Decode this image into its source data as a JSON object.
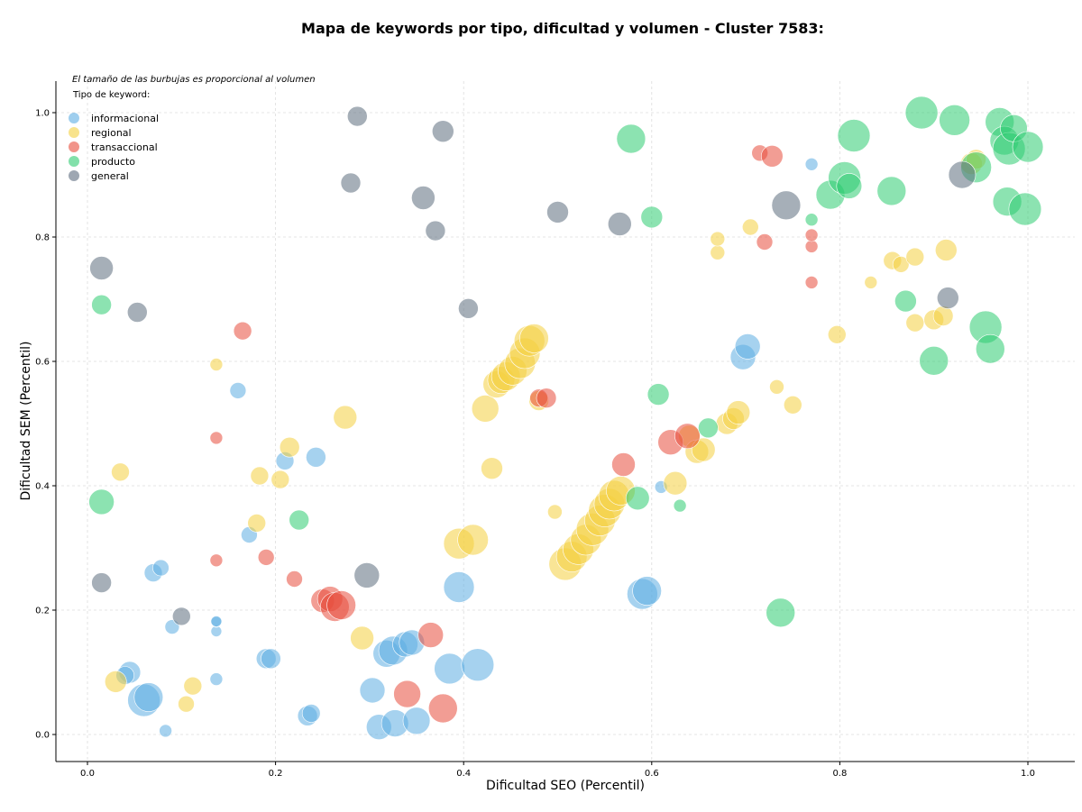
{
  "chart_data": {
    "type": "scatter",
    "title": "Mapa de keywords por tipo, dificultad y volumen - Cluster 7583:",
    "xlabel": "Dificultad SEO (Percentil)",
    "ylabel": "Dificultad SEM (Percentil)",
    "xlim": [
      -0.035,
      1.035
    ],
    "ylim": [
      -0.045,
      1.045
    ],
    "xticks": [
      "0.0",
      "0.2",
      "0.4",
      "0.6",
      "0.8",
      "1.0"
    ],
    "yticks": [
      "0.0",
      "0.2",
      "0.4",
      "0.6",
      "0.8",
      "1.0"
    ],
    "grid": true,
    "size_note": "El tamaño de las burbujas es proporcional al volumen",
    "legend_title": "Tipo de keyword:",
    "legend_position": "top-left",
    "series": [
      {
        "name": "informacional",
        "color": "#5DADE2",
        "points": [
          [
            0.045,
            0.1,
            12
          ],
          [
            0.04,
            0.095,
            10
          ],
          [
            0.06,
            0.055,
            18
          ],
          [
            0.065,
            0.06,
            16
          ],
          [
            0.07,
            0.26,
            10
          ],
          [
            0.078,
            0.268,
            9
          ],
          [
            0.083,
            0.006,
            7
          ],
          [
            0.09,
            0.173,
            8
          ],
          [
            0.137,
            0.089,
            7
          ],
          [
            0.137,
            0.166,
            6
          ],
          [
            0.137,
            0.181,
            6
          ],
          [
            0.137,
            0.182,
            6
          ],
          [
            0.16,
            0.553,
            9
          ],
          [
            0.172,
            0.321,
            9
          ],
          [
            0.19,
            0.122,
            11
          ],
          [
            0.195,
            0.122,
            11
          ],
          [
            0.21,
            0.44,
            10
          ],
          [
            0.234,
            0.03,
            11
          ],
          [
            0.238,
            0.034,
            10
          ],
          [
            0.243,
            0.446,
            11
          ],
          [
            0.303,
            0.071,
            14
          ],
          [
            0.31,
            0.012,
            14
          ],
          [
            0.318,
            0.13,
            15
          ],
          [
            0.325,
            0.135,
            16
          ],
          [
            0.327,
            0.018,
            15
          ],
          [
            0.338,
            0.145,
            14
          ],
          [
            0.345,
            0.148,
            14
          ],
          [
            0.35,
            0.022,
            15
          ],
          [
            0.385,
            0.106,
            17
          ],
          [
            0.395,
            0.237,
            17
          ],
          [
            0.415,
            0.112,
            18
          ],
          [
            0.59,
            0.226,
            17
          ],
          [
            0.595,
            0.231,
            16
          ],
          [
            0.61,
            0.398,
            7
          ],
          [
            0.697,
            0.607,
            14
          ],
          [
            0.702,
            0.624,
            14
          ],
          [
            0.77,
            0.917,
            7
          ]
        ]
      },
      {
        "name": "regional",
        "color": "#F4D03F",
        "points": [
          [
            0.03,
            0.085,
            12
          ],
          [
            0.035,
            0.422,
            10
          ],
          [
            0.105,
            0.049,
            9
          ],
          [
            0.112,
            0.078,
            10
          ],
          [
            0.137,
            0.595,
            7
          ],
          [
            0.18,
            0.34,
            10
          ],
          [
            0.183,
            0.416,
            10
          ],
          [
            0.205,
            0.41,
            10
          ],
          [
            0.215,
            0.462,
            11
          ],
          [
            0.274,
            0.51,
            13
          ],
          [
            0.292,
            0.155,
            13
          ],
          [
            0.395,
            0.307,
            17
          ],
          [
            0.41,
            0.313,
            17
          ],
          [
            0.423,
            0.524,
            15
          ],
          [
            0.43,
            0.428,
            12
          ],
          [
            0.435,
            0.563,
            15
          ],
          [
            0.44,
            0.57,
            15
          ],
          [
            0.445,
            0.576,
            16
          ],
          [
            0.452,
            0.585,
            16
          ],
          [
            0.46,
            0.597,
            17
          ],
          [
            0.465,
            0.613,
            17
          ],
          [
            0.47,
            0.633,
            17
          ],
          [
            0.475,
            0.637,
            16
          ],
          [
            0.48,
            0.537,
            11
          ],
          [
            0.497,
            0.358,
            8
          ],
          [
            0.508,
            0.274,
            18
          ],
          [
            0.515,
            0.286,
            17
          ],
          [
            0.522,
            0.298,
            17
          ],
          [
            0.53,
            0.313,
            17
          ],
          [
            0.537,
            0.33,
            18
          ],
          [
            0.545,
            0.344,
            17
          ],
          [
            0.55,
            0.36,
            18
          ],
          [
            0.555,
            0.371,
            17
          ],
          [
            0.56,
            0.384,
            17
          ],
          [
            0.567,
            0.392,
            16
          ],
          [
            0.625,
            0.404,
            13
          ],
          [
            0.64,
            0.48,
            12
          ],
          [
            0.648,
            0.455,
            13
          ],
          [
            0.655,
            0.458,
            13
          ],
          [
            0.68,
            0.5,
            12
          ],
          [
            0.687,
            0.508,
            12
          ],
          [
            0.692,
            0.518,
            13
          ],
          [
            0.67,
            0.775,
            8
          ],
          [
            0.67,
            0.797,
            8
          ],
          [
            0.705,
            0.816,
            9
          ],
          [
            0.733,
            0.559,
            8
          ],
          [
            0.75,
            0.53,
            10
          ],
          [
            0.797,
            0.643,
            10
          ],
          [
            0.833,
            0.727,
            7
          ],
          [
            0.856,
            0.762,
            10
          ],
          [
            0.865,
            0.756,
            9
          ],
          [
            0.88,
            0.768,
            10
          ],
          [
            0.88,
            0.662,
            10
          ],
          [
            0.9,
            0.667,
            11
          ],
          [
            0.91,
            0.673,
            11
          ],
          [
            0.913,
            0.779,
            12
          ],
          [
            0.94,
            0.918,
            12
          ],
          [
            0.945,
            0.925,
            11
          ]
        ]
      },
      {
        "name": "transaccional",
        "color": "#E74C3C",
        "points": [
          [
            0.137,
            0.477,
            7
          ],
          [
            0.137,
            0.28,
            7
          ],
          [
            0.165,
            0.649,
            10
          ],
          [
            0.19,
            0.285,
            9
          ],
          [
            0.22,
            0.25,
            9
          ],
          [
            0.25,
            0.215,
            13
          ],
          [
            0.258,
            0.218,
            14
          ],
          [
            0.263,
            0.205,
            16
          ],
          [
            0.27,
            0.208,
            16
          ],
          [
            0.34,
            0.065,
            15
          ],
          [
            0.365,
            0.16,
            14
          ],
          [
            0.378,
            0.042,
            16
          ],
          [
            0.48,
            0.541,
            10
          ],
          [
            0.488,
            0.541,
            11
          ],
          [
            0.57,
            0.434,
            13
          ],
          [
            0.62,
            0.47,
            14
          ],
          [
            0.638,
            0.48,
            14
          ],
          [
            0.715,
            0.935,
            9
          ],
          [
            0.72,
            0.792,
            9
          ],
          [
            0.728,
            0.93,
            12
          ],
          [
            0.77,
            0.785,
            7
          ],
          [
            0.77,
            0.803,
            7
          ],
          [
            0.77,
            0.727,
            7
          ]
        ]
      },
      {
        "name": "producto",
        "color": "#2ECC71",
        "points": [
          [
            0.015,
            0.374,
            14
          ],
          [
            0.015,
            0.691,
            11
          ],
          [
            0.225,
            0.345,
            11
          ],
          [
            0.578,
            0.958,
            16
          ],
          [
            0.585,
            0.38,
            13
          ],
          [
            0.6,
            0.832,
            12
          ],
          [
            0.607,
            0.547,
            12
          ],
          [
            0.63,
            0.368,
            7
          ],
          [
            0.66,
            0.493,
            11
          ],
          [
            0.737,
            0.196,
            16
          ],
          [
            0.77,
            0.828,
            7
          ],
          [
            0.79,
            0.868,
            16
          ],
          [
            0.805,
            0.895,
            18
          ],
          [
            0.81,
            0.882,
            14
          ],
          [
            0.815,
            0.963,
            18
          ],
          [
            0.855,
            0.874,
            16
          ],
          [
            0.87,
            0.697,
            12
          ],
          [
            0.887,
            1.0,
            18
          ],
          [
            0.9,
            0.601,
            16
          ],
          [
            0.922,
            0.988,
            17
          ],
          [
            0.945,
            0.912,
            17
          ],
          [
            0.955,
            0.655,
            18
          ],
          [
            0.96,
            0.62,
            16
          ],
          [
            0.97,
            0.985,
            16
          ],
          [
            0.975,
            0.955,
            16
          ],
          [
            0.978,
            0.857,
            16
          ],
          [
            0.98,
            0.942,
            18
          ],
          [
            0.985,
            0.975,
            15
          ],
          [
            0.997,
            0.845,
            18
          ],
          [
            1.0,
            0.945,
            17
          ]
        ]
      },
      {
        "name": "general",
        "color": "#5D6D7E",
        "points": [
          [
            0.015,
            0.75,
            13
          ],
          [
            0.015,
            0.244,
            11
          ],
          [
            0.053,
            0.679,
            11
          ],
          [
            0.1,
            0.19,
            10
          ],
          [
            0.28,
            0.887,
            11
          ],
          [
            0.287,
            0.994,
            11
          ],
          [
            0.297,
            0.256,
            14
          ],
          [
            0.357,
            0.863,
            13
          ],
          [
            0.37,
            0.81,
            11
          ],
          [
            0.378,
            0.97,
            12
          ],
          [
            0.405,
            0.685,
            11
          ],
          [
            0.5,
            0.84,
            12
          ],
          [
            0.566,
            0.821,
            13
          ],
          [
            0.743,
            0.851,
            16
          ],
          [
            0.915,
            0.702,
            12
          ],
          [
            0.93,
            0.9,
            15
          ]
        ]
      }
    ]
  }
}
